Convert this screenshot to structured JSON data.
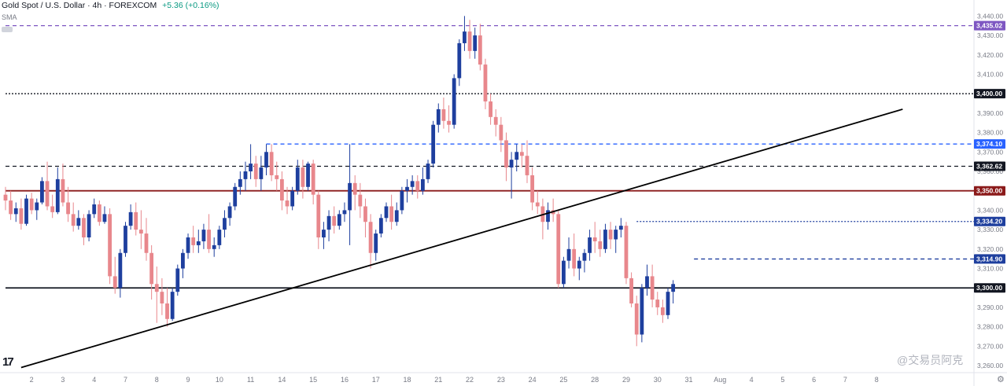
{
  "header": {
    "symbol": "Gold Spot / U.S. Dollar · 4h · FOREXCOM",
    "change": "+5.36 (+0.16%)",
    "indicator": "SMA"
  },
  "icons": {
    "logo": "tradingview-logo-icon",
    "settings": "gear-icon",
    "collapse": "eye-icon"
  },
  "watermark": "@交易员阿克",
  "logo_text": "17",
  "colors": {
    "up": "#1e3f9e",
    "down": "#e8878c",
    "purple": "#7e57c2",
    "darkred": "#8b1a1a",
    "blue": "#2962ff",
    "black": "#000000"
  },
  "chart_data": {
    "type": "candlestick",
    "title": "Gold Spot / U.S. Dollar",
    "timeframe": "4h",
    "ylim": [
      3258,
      3445
    ],
    "y_ticks": [
      3260,
      3270,
      3280,
      3290,
      3300,
      3310,
      3320,
      3330,
      3340,
      3350,
      3360,
      3370,
      3380,
      3390,
      3400,
      3410,
      3420,
      3430,
      3440
    ],
    "y_tick_labels": [
      "3,260.00",
      "3,270.00",
      "3,280.00",
      "3,290.00",
      "3,300.00",
      "3,310.00",
      "3,320.00",
      "3,330.00",
      "3,340.00",
      "3,350.00",
      "3,360.00",
      "3,370.00",
      "3,380.00",
      "3,390.00",
      "3,400.00",
      "3,410.00",
      "3,420.00",
      "3,430.00",
      "3,440.00"
    ],
    "x_ticks": [
      {
        "label": "2",
        "i": 5
      },
      {
        "label": "3",
        "i": 11
      },
      {
        "label": "4",
        "i": 17
      },
      {
        "label": "7",
        "i": 23
      },
      {
        "label": "8",
        "i": 29
      },
      {
        "label": "9",
        "i": 35
      },
      {
        "label": "10",
        "i": 41
      },
      {
        "label": "11",
        "i": 47
      },
      {
        "label": "14",
        "i": 53
      },
      {
        "label": "15",
        "i": 59
      },
      {
        "label": "16",
        "i": 65
      },
      {
        "label": "17",
        "i": 71
      },
      {
        "label": "18",
        "i": 77
      },
      {
        "label": "21",
        "i": 83
      },
      {
        "label": "22",
        "i": 89
      },
      {
        "label": "23",
        "i": 95
      },
      {
        "label": "24",
        "i": 101
      },
      {
        "label": "25",
        "i": 107
      },
      {
        "label": "28",
        "i": 113
      },
      {
        "label": "29",
        "i": 119
      },
      {
        "label": "30",
        "i": 125
      },
      {
        "label": "31",
        "i": 131
      },
      {
        "label": "Aug",
        "i": 137
      },
      {
        "label": "4",
        "i": 143
      },
      {
        "label": "5",
        "i": 149
      },
      {
        "label": "6",
        "i": 155
      },
      {
        "label": "7",
        "i": 161
      },
      {
        "label": "8",
        "i": 167
      }
    ],
    "levels": [
      {
        "price": 3435.02,
        "label": "3,435.02",
        "color": "#7e57c2",
        "style": "dashed",
        "start_i": 0
      },
      {
        "price": 3400.0,
        "label": "3,400.00",
        "color": "#131722",
        "style": "dotted",
        "start_i": 0
      },
      {
        "price": 3374.1,
        "label": "3,374.10",
        "color": "#2962ff",
        "style": "dashed",
        "start_i": 50
      },
      {
        "price": 3362.62,
        "label": "3,362.62",
        "color": "#131722",
        "style": "dashed",
        "start_i": 0
      },
      {
        "price": 3350.0,
        "label": "3,350.00",
        "color": "#8b1a1a",
        "style": "solid",
        "start_i": 0
      },
      {
        "price": 3334.2,
        "label": "3,334.20",
        "color": "#1e3f9e",
        "style": "dotted",
        "start_i": 121
      },
      {
        "price": 3314.9,
        "label": "3,314.90",
        "color": "#1e3f9e",
        "style": "dashed",
        "start_i": 132
      },
      {
        "price": 3300.0,
        "label": "3,300.00",
        "color": "#131722",
        "style": "solid",
        "start_i": 0
      }
    ],
    "trendline": {
      "from_i": 3,
      "from_price": 3259,
      "to_i": 172,
      "to_price": 3392
    },
    "ohlc": [
      [
        3348,
        3352,
        3340,
        3345
      ],
      [
        3345,
        3350,
        3335,
        3338
      ],
      [
        3338,
        3344,
        3334,
        3341
      ],
      [
        3341,
        3346,
        3330,
        3333
      ],
      [
        3333,
        3348,
        3332,
        3346
      ],
      [
        3346,
        3349,
        3338,
        3340
      ],
      [
        3340,
        3346,
        3335,
        3344
      ],
      [
        3344,
        3357,
        3343,
        3355
      ],
      [
        3355,
        3365,
        3340,
        3342
      ],
      [
        3342,
        3348,
        3336,
        3339
      ],
      [
        3339,
        3362,
        3338,
        3356
      ],
      [
        3356,
        3364,
        3342,
        3344
      ],
      [
        3344,
        3352,
        3334,
        3338
      ],
      [
        3338,
        3344,
        3329,
        3332
      ],
      [
        3332,
        3340,
        3330,
        3336
      ],
      [
        3336,
        3338,
        3322,
        3326
      ],
      [
        3326,
        3340,
        3324,
        3338
      ],
      [
        3338,
        3346,
        3336,
        3343
      ],
      [
        3343,
        3345,
        3332,
        3334
      ],
      [
        3334,
        3342,
        3333,
        3338
      ],
      [
        3338,
        3341,
        3302,
        3306
      ],
      [
        3306,
        3316,
        3297,
        3300
      ],
      [
        3300,
        3320,
        3295,
        3318
      ],
      [
        3318,
        3334,
        3316,
        3332
      ],
      [
        3332,
        3343,
        3330,
        3339
      ],
      [
        3339,
        3344,
        3327,
        3330
      ],
      [
        3330,
        3340,
        3320,
        3328
      ],
      [
        3328,
        3336,
        3314,
        3318
      ],
      [
        3318,
        3322,
        3294,
        3302
      ],
      [
        3302,
        3311,
        3282,
        3298
      ],
      [
        3298,
        3305,
        3286,
        3292
      ],
      [
        3292,
        3300,
        3280,
        3284
      ],
      [
        3284,
        3300,
        3283,
        3298
      ],
      [
        3298,
        3312,
        3296,
        3310
      ],
      [
        3310,
        3320,
        3305,
        3318
      ],
      [
        3318,
        3328,
        3315,
        3326
      ],
      [
        3326,
        3332,
        3318,
        3322
      ],
      [
        3322,
        3330,
        3318,
        3324
      ],
      [
        3324,
        3333,
        3320,
        3330
      ],
      [
        3330,
        3338,
        3318,
        3320
      ],
      [
        3320,
        3326,
        3316,
        3322
      ],
      [
        3322,
        3332,
        3320,
        3330
      ],
      [
        3330,
        3340,
        3326,
        3336
      ],
      [
        3336,
        3344,
        3332,
        3342
      ],
      [
        3342,
        3354,
        3340,
        3352
      ],
      [
        3352,
        3360,
        3348,
        3356
      ],
      [
        3356,
        3365,
        3350,
        3360
      ],
      [
        3360,
        3374,
        3356,
        3364
      ],
      [
        3364,
        3368,
        3352,
        3356
      ],
      [
        3356,
        3368,
        3350,
        3362
      ],
      [
        3362,
        3374,
        3358,
        3370
      ],
      [
        3370,
        3374,
        3355,
        3358
      ],
      [
        3358,
        3365,
        3350,
        3356
      ],
      [
        3356,
        3360,
        3340,
        3345
      ],
      [
        3345,
        3352,
        3338,
        3342
      ],
      [
        3342,
        3352,
        3340,
        3350
      ],
      [
        3350,
        3366,
        3348,
        3362
      ],
      [
        3362,
        3366,
        3346,
        3352
      ],
      [
        3352,
        3365,
        3350,
        3364
      ],
      [
        3364,
        3366,
        3343,
        3348
      ],
      [
        3348,
        3350,
        3320,
        3326
      ],
      [
        3326,
        3334,
        3320,
        3330
      ],
      [
        3330,
        3340,
        3324,
        3337
      ],
      [
        3337,
        3342,
        3328,
        3332
      ],
      [
        3332,
        3340,
        3330,
        3338
      ],
      [
        3338,
        3344,
        3334,
        3340
      ],
      [
        3340,
        3374,
        3322,
        3354
      ],
      [
        3354,
        3358,
        3340,
        3348
      ],
      [
        3348,
        3354,
        3336,
        3342
      ],
      [
        3342,
        3346,
        3326,
        3334
      ],
      [
        3334,
        3338,
        3310,
        3318
      ],
      [
        3318,
        3330,
        3314,
        3328
      ],
      [
        3328,
        3338,
        3326,
        3336
      ],
      [
        3336,
        3344,
        3334,
        3342
      ],
      [
        3342,
        3348,
        3330,
        3334
      ],
      [
        3334,
        3344,
        3332,
        3340
      ],
      [
        3340,
        3352,
        3338,
        3350
      ],
      [
        3350,
        3356,
        3344,
        3352
      ],
      [
        3352,
        3358,
        3348,
        3355
      ],
      [
        3355,
        3358,
        3346,
        3350
      ],
      [
        3350,
        3362,
        3348,
        3356
      ],
      [
        3356,
        3366,
        3354,
        3364
      ],
      [
        3364,
        3386,
        3362,
        3384
      ],
      [
        3384,
        3395,
        3380,
        3392
      ],
      [
        3392,
        3398,
        3382,
        3386
      ],
      [
        3386,
        3394,
        3380,
        3384
      ],
      [
        3384,
        3410,
        3382,
        3408
      ],
      [
        3408,
        3428,
        3404,
        3426
      ],
      [
        3426,
        3440,
        3422,
        3432
      ],
      [
        3432,
        3438,
        3418,
        3422
      ],
      [
        3422,
        3434,
        3418,
        3430
      ],
      [
        3430,
        3436,
        3412,
        3415
      ],
      [
        3415,
        3418,
        3392,
        3396
      ],
      [
        3396,
        3400,
        3384,
        3388
      ],
      [
        3388,
        3392,
        3378,
        3384
      ],
      [
        3384,
        3388,
        3370,
        3376
      ],
      [
        3376,
        3380,
        3355,
        3362
      ],
      [
        3362,
        3370,
        3346,
        3366
      ],
      [
        3366,
        3374,
        3360,
        3370
      ],
      [
        3370,
        3374,
        3362,
        3368
      ],
      [
        3368,
        3376,
        3354,
        3358
      ],
      [
        3358,
        3362,
        3340,
        3344
      ],
      [
        3344,
        3350,
        3338,
        3342
      ],
      [
        3342,
        3346,
        3325,
        3334
      ],
      [
        3334,
        3344,
        3330,
        3340
      ],
      [
        3340,
        3346,
        3334,
        3338
      ],
      [
        3338,
        3340,
        3300,
        3302
      ],
      [
        3302,
        3316,
        3300,
        3314
      ],
      [
        3314,
        3326,
        3310,
        3320
      ],
      [
        3320,
        3328,
        3306,
        3310
      ],
      [
        3310,
        3316,
        3304,
        3314
      ],
      [
        3314,
        3320,
        3308,
        3318
      ],
      [
        3318,
        3330,
        3314,
        3326
      ],
      [
        3326,
        3334,
        3318,
        3324
      ],
      [
        3324,
        3330,
        3316,
        3320
      ],
      [
        3320,
        3333,
        3318,
        3330
      ],
      [
        3330,
        3334,
        3320,
        3325
      ],
      [
        3325,
        3332,
        3318,
        3330
      ],
      [
        3330,
        3336,
        3326,
        3332
      ],
      [
        3332,
        3334,
        3302,
        3305
      ],
      [
        3305,
        3308,
        3290,
        3292
      ],
      [
        3292,
        3296,
        3270,
        3276
      ],
      [
        3276,
        3302,
        3272,
        3300
      ],
      [
        3300,
        3312,
        3296,
        3306
      ],
      [
        3306,
        3312,
        3290,
        3294
      ],
      [
        3294,
        3298,
        3286,
        3290
      ],
      [
        3290,
        3294,
        3282,
        3286
      ],
      [
        3286,
        3300,
        3284,
        3298
      ],
      [
        3298,
        3304,
        3292,
        3302
      ]
    ]
  }
}
